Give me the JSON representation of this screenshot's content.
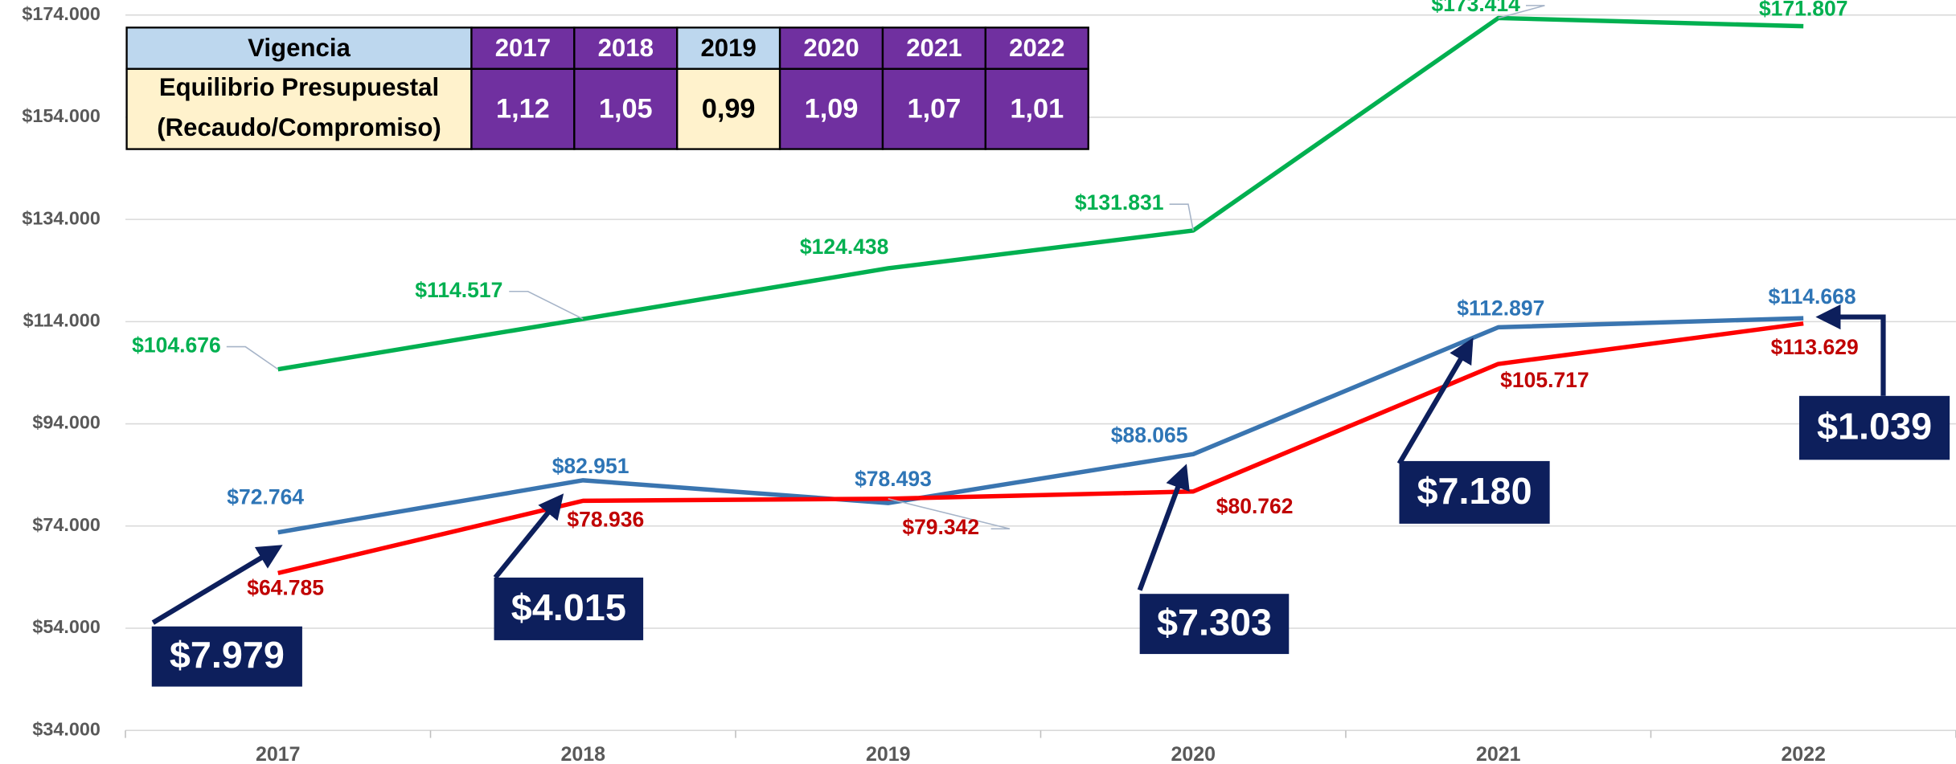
{
  "chart_data": {
    "type": "line",
    "categories": [
      "2017",
      "2018",
      "2019",
      "2020",
      "2021",
      "2022"
    ],
    "series": [
      {
        "color": "#00b050",
        "values": [
          104676,
          114517,
          124438,
          131831,
          173414,
          171807
        ],
        "value_labels": [
          "$104.676",
          "$114.517",
          "$124.438",
          "$131.831",
          "$173.414",
          "$171.807"
        ]
      },
      {
        "color": "#3a75b0",
        "values": [
          72764,
          82951,
          78493,
          88065,
          112897,
          114668
        ],
        "value_labels": [
          "$72.764",
          "$82.951",
          "$78.493",
          "$88.065",
          "$112.897",
          "$114.668"
        ]
      },
      {
        "color": "#ff0000",
        "values": [
          64785,
          78936,
          79342,
          80762,
          105717,
          113629
        ],
        "value_labels": [
          "$64.785",
          "$78.936",
          "$79.342",
          "$80.762",
          "$105.717",
          "$113.629"
        ]
      }
    ],
    "ylim": [
      34000,
      174000
    ],
    "yticks": [
      {
        "value": 34000,
        "label": "$34.000"
      },
      {
        "value": 54000,
        "label": "$54.000"
      },
      {
        "value": 74000,
        "label": "$74.000"
      },
      {
        "value": 94000,
        "label": "$94.000"
      },
      {
        "value": 114000,
        "label": "$114.000"
      },
      {
        "value": 134000,
        "label": "$134.000"
      },
      {
        "value": 154000,
        "label": "$154.000"
      },
      {
        "value": 174000,
        "label": "$174.000"
      }
    ],
    "grid": true,
    "annotations": [
      "$7.979",
      "$4.015",
      "$7.303",
      "$7.180",
      "$1.039"
    ]
  },
  "table": {
    "header": [
      "Vigencia",
      "2017",
      "2018",
      "2019",
      "2020",
      "2021",
      "2022"
    ],
    "row_label": [
      "Equilibrio Presupuestal",
      "(Recaudo/Compromiso)"
    ],
    "values": [
      "1,12",
      "1,05",
      "0,99",
      "1,09",
      "1,07",
      "1,01"
    ]
  }
}
